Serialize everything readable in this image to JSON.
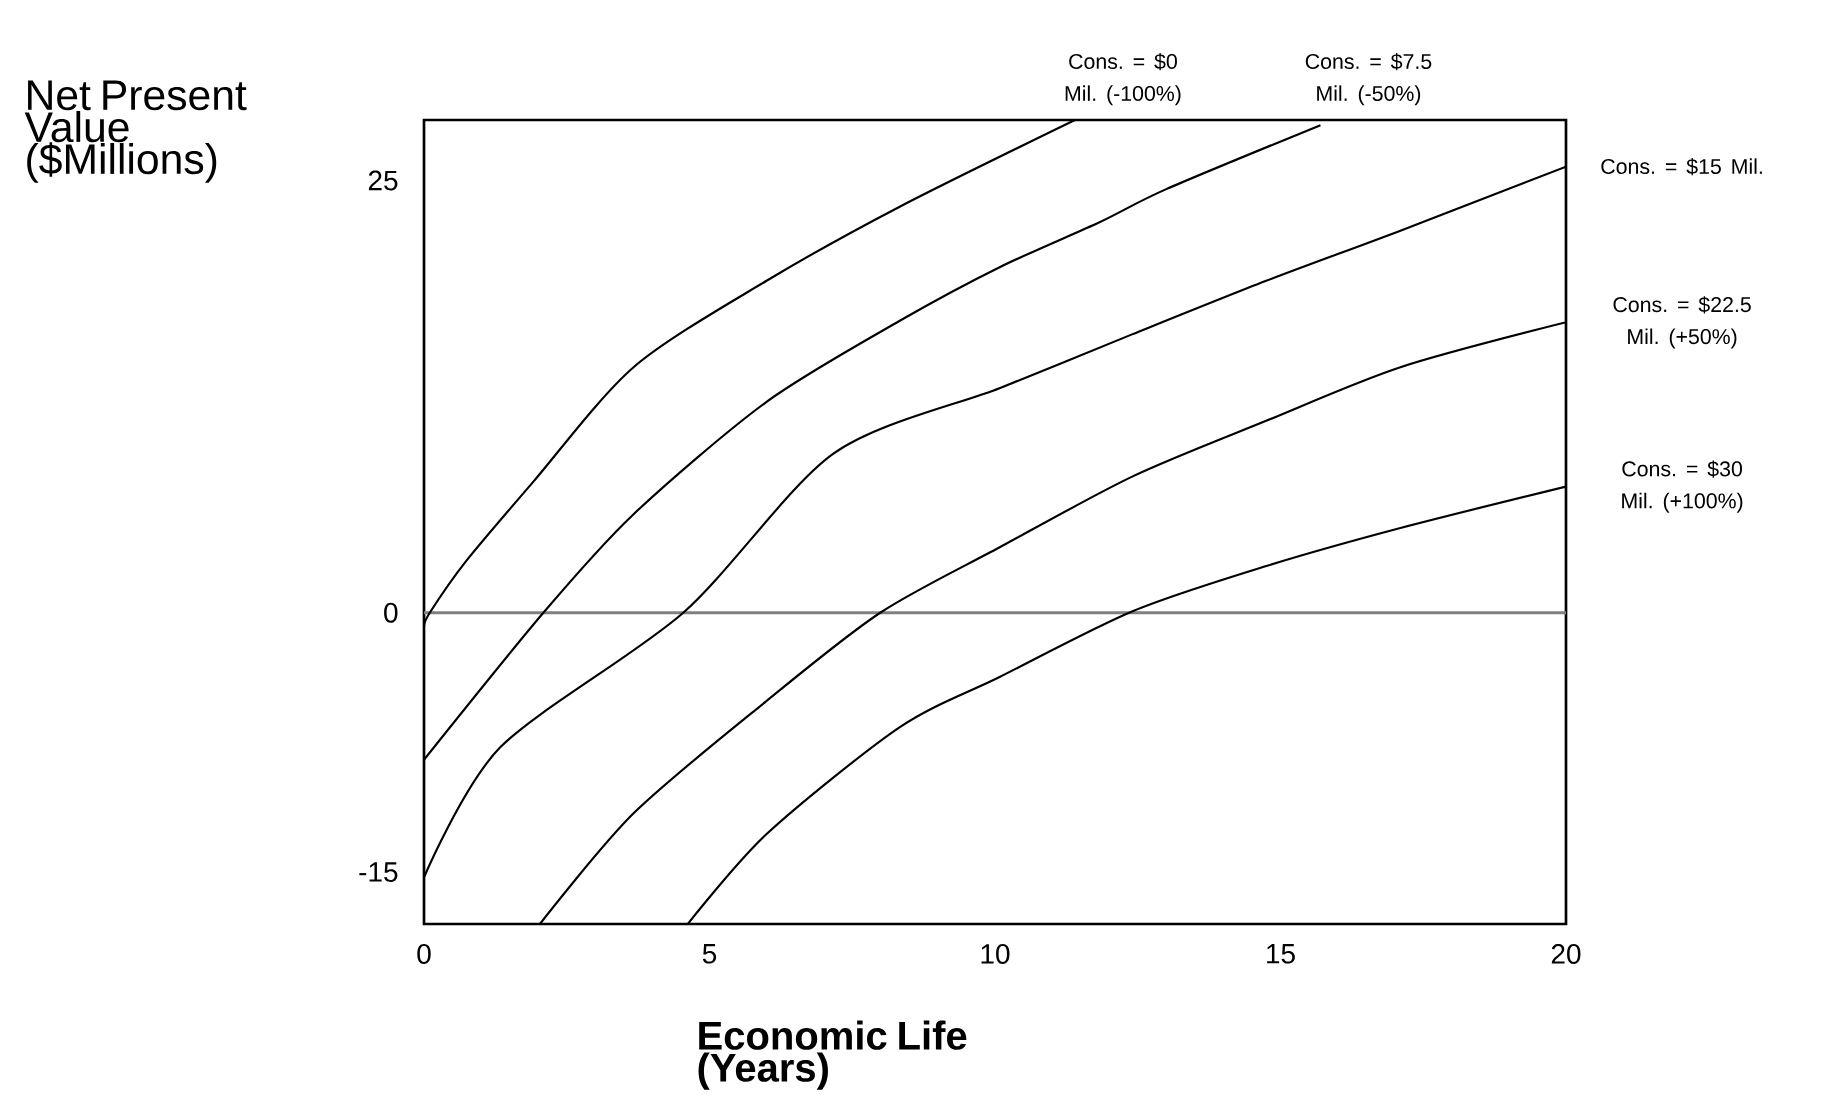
{
  "chart_data": {
    "type": "line",
    "xlabel": "Economic Life (Years)",
    "ylabel": "Net Present Value ($Millions)",
    "xlim": [
      0,
      20
    ],
    "ylim": [
      -18,
      28.5
    ],
    "xticks": [
      0,
      5,
      10,
      15,
      20
    ],
    "yticks": [
      -15,
      0,
      25
    ],
    "grid": false,
    "ref_lines": [
      {
        "axis": "y",
        "value": 0,
        "color": "#808080"
      }
    ],
    "series": [
      {
        "name": "Cons. = $0 Mil. (-100%)",
        "color": "#000000",
        "x": [
          0,
          0.1,
          0.74,
          1.92,
          3.67,
          6.0,
          8.34,
          11.4
        ],
        "values": [
          -0.8,
          0,
          3.0,
          7.6,
          14.2,
          19.2,
          23.5,
          28.5
        ]
      },
      {
        "name": "Cons. = $7.5 Mil. (-50%)",
        "color": "#000000",
        "x": [
          0,
          2.09,
          3.67,
          6.0,
          8.34,
          10.09,
          11.84,
          13.0,
          15.7
        ],
        "values": [
          -8.5,
          0,
          5.7,
          12.2,
          16.9,
          20.0,
          22.6,
          24.5,
          28.2
        ]
      },
      {
        "name": "Cons. = $15 Mil.",
        "color": "#000000",
        "x": [
          0,
          1.33,
          4.54,
          7.17,
          10.09,
          12.4,
          14.75,
          17.1,
          20
        ],
        "values": [
          -15.3,
          -7.8,
          0,
          9.2,
          13.0,
          16.1,
          19.2,
          22.1,
          25.8
        ]
      },
      {
        "name": "Cons. = $22.5 Mil. (+50%)",
        "color": "#000000",
        "x": [
          2.03,
          3.67,
          6.0,
          7.99,
          10.09,
          12.42,
          14.75,
          17.1,
          20
        ],
        "values": [
          -18,
          -11.6,
          -5.1,
          0,
          3.8,
          7.9,
          11.1,
          14.2,
          16.8
        ]
      },
      {
        "name": "Cons. = $30 Mil. (+100%)",
        "color": "#000000",
        "x": [
          4.62,
          6.0,
          8.34,
          10.09,
          12.42,
          14.75,
          17.1,
          20
        ],
        "values": [
          -18,
          -12.8,
          -6.6,
          -3.7,
          0.1,
          2.7,
          4.9,
          7.3
        ]
      }
    ]
  }
}
